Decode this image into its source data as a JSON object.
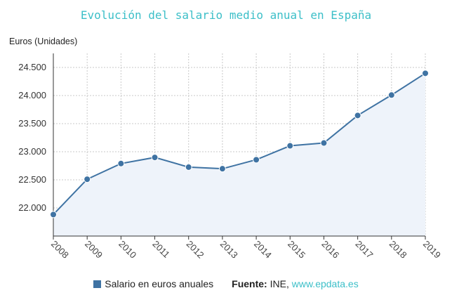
{
  "chart_data": {
    "type": "area",
    "title": "Evolución del salario medio anual en España",
    "ylabel": "Euros (Unidades)",
    "xlabel": "",
    "x": [
      "2008",
      "2009",
      "2010",
      "2011",
      "2012",
      "2013",
      "2014",
      "2015",
      "2016",
      "2017",
      "2018",
      "2019"
    ],
    "series": [
      {
        "name": "Salario en euros anuales",
        "values": [
          21883,
          22511,
          22790,
          22899,
          22726,
          22698,
          22858,
          23106,
          23156,
          23646,
          24009,
          24396
        ]
      }
    ],
    "ylim": [
      21500,
      24750
    ],
    "yticks": [
      22000,
      22500,
      23000,
      23500,
      24000,
      24500
    ],
    "ytick_labels": [
      "22.000",
      "22.500",
      "23.000",
      "23.500",
      "24.000",
      "24.500"
    ],
    "grid": true,
    "legend": "bottom-center"
  },
  "legend": {
    "series_label": "Salario en euros anuales",
    "source_label": "Fuente:",
    "source_name": "INE,",
    "source_url": "www.epdata.es"
  },
  "colors": {
    "line": "#3f73a3",
    "fill": "#eef3fa",
    "title": "#3cbfc8",
    "grid": "#c8c8c8"
  }
}
